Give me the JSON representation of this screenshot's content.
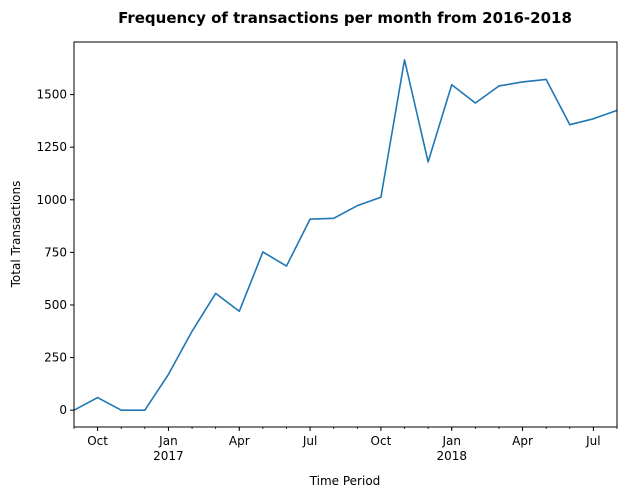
{
  "chart_data": {
    "type": "line",
    "title": "Frequency of transactions per month from 2016-2018",
    "xlabel": "Time Period",
    "ylabel": "Total Transactions",
    "grid": false,
    "legend": "none",
    "line_color": "#1f77b4",
    "x": [
      "2016-09",
      "2016-10",
      "2016-11",
      "2016-12",
      "2017-01",
      "2017-02",
      "2017-03",
      "2017-04",
      "2017-05",
      "2017-06",
      "2017-07",
      "2017-08",
      "2017-09",
      "2017-10",
      "2017-11",
      "2017-12",
      "2018-01",
      "2018-02",
      "2018-03",
      "2018-04",
      "2018-05",
      "2018-06",
      "2018-07",
      "2018-08"
    ],
    "values": [
      0,
      60,
      0,
      0,
      170,
      375,
      555,
      470,
      752,
      685,
      908,
      912,
      972,
      1012,
      1665,
      1180,
      1547,
      1460,
      1541,
      1560,
      1572,
      1357,
      1385,
      1425
    ],
    "xlim": [
      "2016-09",
      "2018-08"
    ],
    "ylim": [
      -80,
      1750
    ],
    "yticks": [
      0,
      250,
      500,
      750,
      1000,
      1250,
      1500
    ],
    "ytick_labels": [
      "0",
      "250",
      "500",
      "750",
      "1000",
      "1250",
      "1500"
    ],
    "xticks_major": [
      {
        "x": "2016-10",
        "label": "Oct",
        "sublabel": ""
      },
      {
        "x": "2017-01",
        "label": "Jan",
        "sublabel": "2017"
      },
      {
        "x": "2017-04",
        "label": "Apr",
        "sublabel": ""
      },
      {
        "x": "2017-07",
        "label": "Jul",
        "sublabel": ""
      },
      {
        "x": "2017-10",
        "label": "Oct",
        "sublabel": ""
      },
      {
        "x": "2018-01",
        "label": "Jan",
        "sublabel": "2018"
      },
      {
        "x": "2018-04",
        "label": "Apr",
        "sublabel": ""
      },
      {
        "x": "2018-07",
        "label": "Jul",
        "sublabel": ""
      }
    ]
  }
}
